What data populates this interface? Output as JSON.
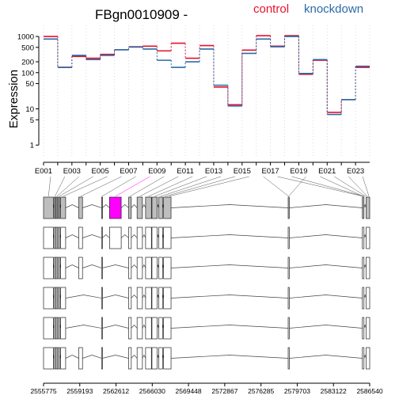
{
  "colors": {
    "control": "#e8112d",
    "knockdown": "#2c6aa8",
    "highlight": "#ff00ff",
    "exon_fill": "#bebebe",
    "grid": "#d3d3d3"
  },
  "chart_data": {
    "type": "line",
    "title": "FBgn0010909 -",
    "ylabel": "Expression",
    "yscale": "log",
    "ylim": [
      0.5,
      1500
    ],
    "yticks": [
      1,
      5,
      10,
      50,
      100,
      200,
      500,
      1000
    ],
    "grid": true,
    "legend_position": "top-right",
    "exon_labels_shown": [
      "E001",
      "E003",
      "E005",
      "E007",
      "E009",
      "E011",
      "E013",
      "E015",
      "E017",
      "E019",
      "E021",
      "E023"
    ],
    "exons": [
      "E001",
      "E002",
      "E003",
      "E004",
      "E005",
      "E006",
      "E007",
      "E008",
      "E009",
      "E010",
      "E011",
      "E012",
      "E013",
      "E014",
      "E015",
      "E016",
      "E017",
      "E018",
      "E019",
      "E020",
      "E021",
      "E022",
      "E023"
    ],
    "series": [
      {
        "name": "control",
        "values": [
          1000,
          140,
          280,
          250,
          320,
          430,
          520,
          540,
          400,
          650,
          250,
          560,
          40,
          13,
          420,
          1050,
          540,
          1050,
          90,
          220,
          8,
          18,
          140
        ]
      },
      {
        "name": "knockdown",
        "values": [
          850,
          140,
          300,
          230,
          300,
          430,
          510,
          450,
          220,
          140,
          200,
          450,
          45,
          12,
          340,
          850,
          520,
          1000,
          95,
          230,
          7,
          18,
          150
        ]
      }
    ],
    "genome_axis": {
      "ticks": [
        "2555775",
        "2559193",
        "2562612",
        "2566030",
        "2569448",
        "2572867",
        "2576285",
        "2579703",
        "2583122",
        "2586540"
      ],
      "min": 2555775,
      "max": 2586540
    },
    "transcripts": [
      {
        "exons": [
          [
            2555775,
            2556700
          ],
          [
            2556780,
            2556920
          ],
          [
            2556960,
            2557110
          ],
          [
            2557170,
            2557310
          ],
          [
            2557390,
            2557860
          ],
          [
            2559100,
            2559450
          ],
          [
            2561250,
            2561320
          ],
          [
            2562000,
            2563100
          ],
          [
            2563800,
            2564050
          ],
          [
            2564600,
            2565100
          ],
          [
            2565400,
            2565950
          ],
          [
            2566000,
            2566500
          ],
          [
            2566650,
            2567000
          ],
          [
            2567100,
            2567800
          ],
          [
            2578850,
            2578950
          ],
          [
            2585850,
            2586000
          ],
          [
            2586200,
            2586540
          ]
        ],
        "highlight": 7
      },
      {
        "exons": [
          [
            2555775,
            2556700
          ],
          [
            2556780,
            2556920
          ],
          [
            2556960,
            2557110
          ],
          [
            2557170,
            2557310
          ],
          [
            2557390,
            2557860
          ],
          [
            2559100,
            2559450
          ],
          [
            2561250,
            2561320
          ],
          [
            2562000,
            2563100
          ],
          [
            2563800,
            2564050
          ],
          [
            2564600,
            2565100
          ],
          [
            2565400,
            2565950
          ],
          [
            2566000,
            2566500
          ],
          [
            2566650,
            2567000
          ],
          [
            2567100,
            2567800
          ],
          [
            2578850,
            2578950
          ],
          [
            2585850,
            2586000
          ],
          [
            2586200,
            2586540
          ]
        ],
        "highlight": -1
      },
      {
        "exons": [
          [
            2555775,
            2556700
          ],
          [
            2556780,
            2556920
          ],
          [
            2556960,
            2557110
          ],
          [
            2557170,
            2557310
          ],
          [
            2557390,
            2557860
          ],
          [
            2559100,
            2559450
          ],
          [
            2561250,
            2561320
          ],
          [
            2563800,
            2564050
          ],
          [
            2564600,
            2565100
          ],
          [
            2565400,
            2565950
          ],
          [
            2566000,
            2566500
          ],
          [
            2566650,
            2567000
          ],
          [
            2567100,
            2567800
          ],
          [
            2578850,
            2578950
          ],
          [
            2585850,
            2586000
          ],
          [
            2586200,
            2586540
          ]
        ],
        "highlight": -1
      },
      {
        "exons": [
          [
            2555775,
            2556700
          ],
          [
            2556780,
            2556920
          ],
          [
            2556960,
            2557110
          ],
          [
            2557170,
            2557310
          ],
          [
            2557390,
            2557860
          ],
          [
            2561250,
            2561320
          ],
          [
            2563800,
            2564050
          ],
          [
            2564600,
            2565100
          ],
          [
            2565400,
            2565950
          ],
          [
            2566000,
            2566500
          ],
          [
            2566650,
            2567000
          ],
          [
            2567100,
            2567800
          ],
          [
            2578850,
            2578950
          ],
          [
            2585850,
            2586000
          ],
          [
            2586200,
            2586540
          ]
        ],
        "highlight": -1
      },
      {
        "exons": [
          [
            2555775,
            2556700
          ],
          [
            2556780,
            2556920
          ],
          [
            2556960,
            2557110
          ],
          [
            2557170,
            2557310
          ],
          [
            2557390,
            2557860
          ],
          [
            2561250,
            2561320
          ],
          [
            2563800,
            2564050
          ],
          [
            2564600,
            2565100
          ],
          [
            2565400,
            2565950
          ],
          [
            2566000,
            2566500
          ],
          [
            2566650,
            2567000
          ],
          [
            2567100,
            2567800
          ],
          [
            2578850,
            2578950
          ],
          [
            2585850,
            2586000
          ],
          [
            2586200,
            2586540
          ]
        ],
        "highlight": -1
      },
      {
        "exons": [
          [
            2555775,
            2556700
          ],
          [
            2556780,
            2556920
          ],
          [
            2556960,
            2557110
          ],
          [
            2557170,
            2557310
          ],
          [
            2557390,
            2557860
          ],
          [
            2559100,
            2559450
          ],
          [
            2561250,
            2561320
          ],
          [
            2563800,
            2564050
          ],
          [
            2564600,
            2565100
          ],
          [
            2565400,
            2565950
          ],
          [
            2566000,
            2566500
          ],
          [
            2566650,
            2567000
          ],
          [
            2567100,
            2567800
          ],
          [
            2578850,
            2578950
          ],
          [
            2585850,
            2586000
          ],
          [
            2586200,
            2586540
          ]
        ],
        "highlight": -1
      }
    ],
    "exon_genomic_positions": [
      [
        2555775,
        2556700
      ],
      [
        2556780,
        2556920
      ],
      [
        2556960,
        2557110
      ],
      [
        2557170,
        2557310
      ],
      [
        2557390,
        2557860
      ],
      [
        2559100,
        2559450
      ],
      [
        2561250,
        2561320
      ],
      [
        2562000,
        2563100
      ],
      [
        2563800,
        2564050
      ],
      [
        2564600,
        2565100
      ],
      [
        2565400,
        2565950
      ],
      [
        2566000,
        2566500
      ],
      [
        2566650,
        2567000
      ],
      [
        2567100,
        2567400
      ],
      [
        2567450,
        2567800
      ],
      [
        2578850,
        2578950
      ],
      [
        2585850,
        2586000
      ],
      [
        2586000,
        2586100
      ],
      [
        2578850,
        2578950
      ],
      [
        2585850,
        2586000
      ],
      [
        2586100,
        2586250
      ],
      [
        2586250,
        2586400
      ],
      [
        2586400,
        2586540
      ]
    ]
  }
}
